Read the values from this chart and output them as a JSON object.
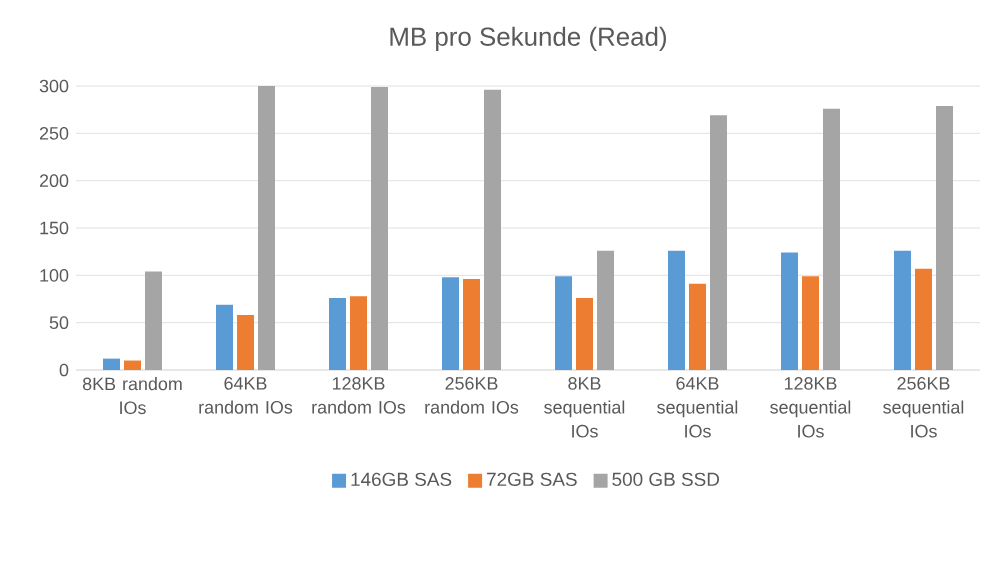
{
  "chart_data": {
    "type": "bar",
    "title": "MB pro Sekunde (Read)",
    "categories": [
      "8KB random IOs",
      "64KB random IOs",
      "128KB random IOs",
      "256KB random IOs",
      "8KB sequential IOs",
      "64KB sequential IOs",
      "128KB sequential IOs",
      "256KB sequential IOs"
    ],
    "series": [
      {
        "name": "146GB SAS",
        "color": "#5b9bd5",
        "values": [
          12,
          69,
          76,
          98,
          99,
          126,
          124,
          126
        ]
      },
      {
        "name": "72GB SAS",
        "color": "#ed7d31",
        "values": [
          10,
          58,
          78,
          96,
          76,
          91,
          99,
          107
        ]
      },
      {
        "name": "500 GB SSD",
        "color": "#a5a5a5",
        "values": [
          104,
          300,
          299,
          296,
          126,
          269,
          276,
          279
        ]
      }
    ],
    "ylim": [
      0,
      300
    ],
    "yticks": [
      0,
      50,
      100,
      150,
      200,
      250,
      300
    ],
    "grid": "y",
    "legend": "bottom"
  }
}
